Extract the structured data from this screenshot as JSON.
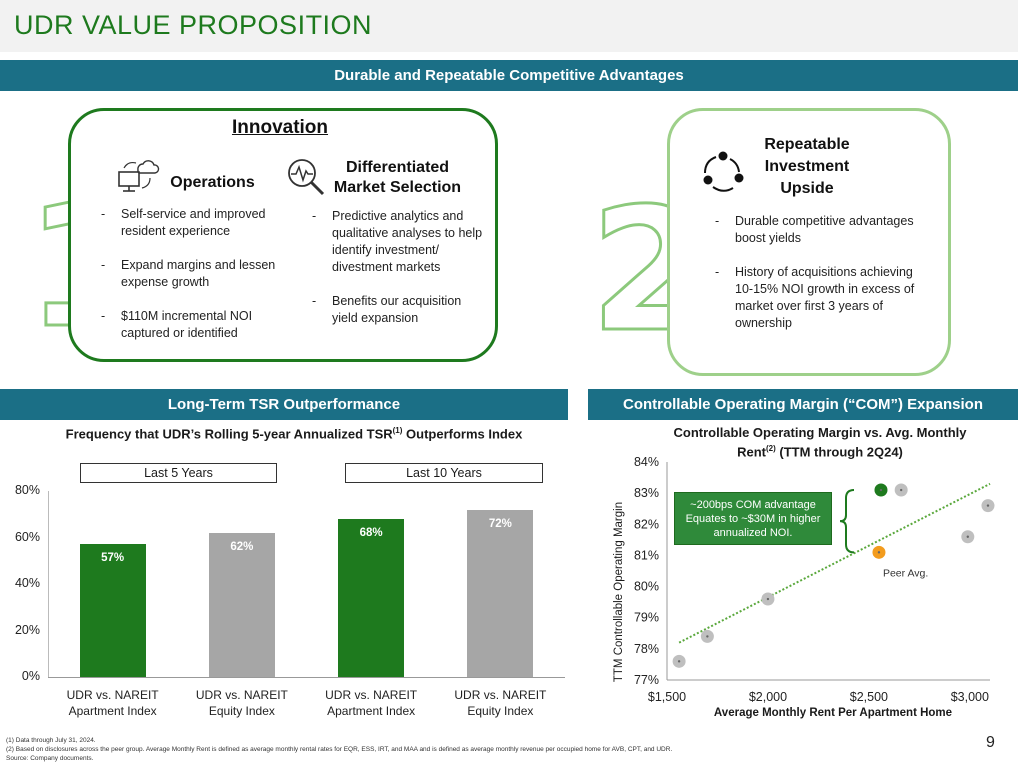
{
  "page_title": "UDR VALUE PROPOSITION",
  "page_number": "9",
  "banner_top": "Durable and Repeatable Competitive Advantages",
  "innovation": {
    "digit": "1",
    "heading": "Innovation",
    "operations": {
      "label": "Operations",
      "bullets": [
        "Self-service and improved resident experience",
        "Expand margins and lessen expense growth",
        "$110M incremental NOI captured or identified"
      ]
    },
    "market": {
      "label_line1": "Differentiated",
      "label_line2": "Market Selection",
      "bullets": [
        "Predictive analytics and qualitative analyses to help identify investment/ divestment markets",
        "Benefits our acquisition yield expansion"
      ]
    }
  },
  "repeatable": {
    "digit": "2",
    "heading_line1": "Repeatable",
    "heading_line2": "Investment",
    "heading_line3": "Upside",
    "bullets": [
      "Durable competitive advantages boost yields",
      "History of acquisitions achieving 10-15% NOI growth in excess of market over first 3 years of ownership"
    ]
  },
  "banner_left": "Long-Term TSR Outperformance",
  "banner_right": "Controllable Operating Margin (“COM”) Expansion",
  "icons": {
    "operations": "computer-cloud-icon",
    "market": "magnifier-pulse-icon",
    "repeatable": "cycle-arrows-icon"
  },
  "colors": {
    "udr_green": "#1e7a1e",
    "peer_gray": "#a6a6a6",
    "banner": "#1b6f86",
    "peer_avg": "#f39c1e",
    "trend": "#5aa83c"
  },
  "footnotes": {
    "n1": "(1)    Data through July 31, 2024.",
    "n2": "(2)    Based on disclosures across the peer group. Average Monthly Rent is defined as average monthly rental rates for EQR, ESS, IRT, and MAA and is defined as average monthly revenue per occupied home for AVB, CPT, and UDR.",
    "src": "Source:  Company documents."
  },
  "chart_data": [
    {
      "type": "bar",
      "title_main": "Frequency that UDR’s Rolling 5-year Annualized TSR",
      "title_sup": "(1)",
      "title_tail": " Outperforms Index",
      "period_labels": [
        "Last 5 Years",
        "Last 10 Years"
      ],
      "categories": [
        [
          "UDR vs. NAREIT",
          "Apartment Index"
        ],
        [
          "UDR vs. NAREIT",
          "Equity Index"
        ],
        [
          "UDR vs. NAREIT",
          "Apartment Index"
        ],
        [
          "UDR vs. NAREIT",
          "Equity Index"
        ]
      ],
      "values": [
        57,
        62,
        68,
        72
      ],
      "value_labels": [
        "57%",
        "62%",
        "68%",
        "72%"
      ],
      "bar_colors": [
        "#1e7a1e",
        "#a6a6a6",
        "#1e7a1e",
        "#a6a6a6"
      ],
      "ylim": [
        0,
        80
      ],
      "y_ticks": [
        "0%",
        "20%",
        "40%",
        "60%",
        "80%"
      ],
      "grid": false
    },
    {
      "type": "scatter",
      "title_line1": "Controllable Operating Margin vs. Avg. Monthly",
      "title_line2a": "Rent",
      "title_sup": "(2)",
      "title_line2b": " (TTM through 2Q24)",
      "xlabel": "Average Monthly Rent Per Apartment Home",
      "ylabel": "TTM Controllable Operating Margin",
      "xlim": [
        1500,
        3100
      ],
      "ylim": [
        77,
        84
      ],
      "x_ticks": [
        "$1,500",
        "$2,000",
        "$2,500",
        "$3,000"
      ],
      "y_ticks": [
        "77%",
        "78%",
        "79%",
        "80%",
        "81%",
        "82%",
        "83%",
        "84%"
      ],
      "points": [
        {
          "x": 1560,
          "y": 77.6,
          "kind": "peer"
        },
        {
          "x": 1700,
          "y": 78.4,
          "kind": "peer"
        },
        {
          "x": 2000,
          "y": 79.6,
          "kind": "peer"
        },
        {
          "x": 2550,
          "y": 81.1,
          "kind": "peer_avg"
        },
        {
          "x": 2560,
          "y": 83.1,
          "kind": "udr"
        },
        {
          "x": 2660,
          "y": 83.1,
          "kind": "peer"
        },
        {
          "x": 2990,
          "y": 81.6,
          "kind": "peer"
        },
        {
          "x": 3090,
          "y": 82.6,
          "kind": "peer"
        }
      ],
      "trendline": [
        {
          "x": 1560,
          "y": 78.2
        },
        {
          "x": 3100,
          "y": 83.3
        }
      ],
      "peer_avg_label": "Peer Avg.",
      "annotation": "~200bps COM advantage Equates to ~$30M in higher annualized NOI.",
      "grid": false
    }
  ]
}
